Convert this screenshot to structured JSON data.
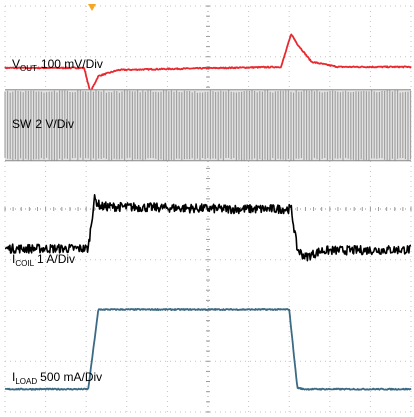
{
  "chart_data": {
    "type": "line",
    "title": "",
    "xlabel": "",
    "ylabel": "",
    "grid": true,
    "grid_divisions": {
      "x": 10,
      "y": 8
    },
    "trigger_marker_color": "#f5a623",
    "x": [
      0,
      0.85,
      0.9,
      1.05,
      2.0,
      2.95,
      3.05,
      4.5,
      5.0,
      6.5,
      8.0,
      10.0
    ],
    "xlim": [
      0,
      10
    ],
    "ylim": [
      0,
      8
    ],
    "series": [
      {
        "name": "V",
        "name_sub": "OUT",
        "scale": "100 mV/Div",
        "label": "V_OUT 100 mV/Div",
        "color": "#e8292f",
        "style": "line",
        "x": [
          0,
          1.5,
          1.95,
          2.1,
          2.3,
          2.8,
          4.0,
          6.8,
          7.05,
          7.2,
          7.55,
          8.2,
          10.0
        ],
        "y": [
          6.78,
          6.78,
          6.78,
          6.3,
          6.62,
          6.74,
          6.76,
          6.8,
          7.45,
          7.25,
          6.9,
          6.8,
          6.8
        ]
      },
      {
        "name": "SW",
        "name_sub": "",
        "scale": "2 V/Div",
        "label": "SW 2 V/Div",
        "color": "#9e9e9e",
        "style": "switching",
        "y_low": 4.95,
        "y_high": 6.35
      },
      {
        "name": "I",
        "name_sub": "COIL",
        "scale": "1 A/Div",
        "label": "I_COIL 1 A/Div",
        "color": "#000000",
        "style": "noisy",
        "x": [
          0,
          2.05,
          2.2,
          2.35,
          5.5,
          7.05,
          7.2,
          7.4,
          7.8,
          10.0
        ],
        "y": [
          3.22,
          3.22,
          4.2,
          4.05,
          4.0,
          4.0,
          3.2,
          3.05,
          3.18,
          3.2
        ]
      },
      {
        "name": "I",
        "name_sub": "LOAD",
        "scale": "500 mA/Div",
        "label": "I_LOAD 500 mA/Div",
        "color": "#3c6a84",
        "style": "line",
        "x": [
          0,
          2.05,
          2.3,
          7.0,
          7.2,
          7.35,
          10.0
        ],
        "y": [
          0.45,
          0.45,
          2.02,
          2.02,
          0.48,
          0.45,
          0.45
        ]
      }
    ]
  }
}
